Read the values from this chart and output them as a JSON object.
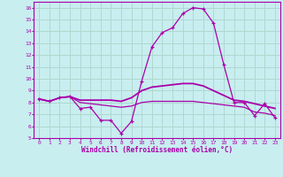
{
  "xlabel": "Windchill (Refroidissement éolien,°C)",
  "background_color": "#c8eef0",
  "grid_color": "#b0d8d0",
  "line_color": "#aa00aa",
  "hours": [
    0,
    1,
    2,
    3,
    4,
    5,
    6,
    7,
    8,
    9,
    10,
    11,
    12,
    13,
    14,
    15,
    16,
    17,
    18,
    19,
    20,
    21,
    22,
    23
  ],
  "series1": [
    8.3,
    8.1,
    8.4,
    8.5,
    7.5,
    7.6,
    6.5,
    6.5,
    5.4,
    6.4,
    9.8,
    12.7,
    13.9,
    14.3,
    15.5,
    16.0,
    15.9,
    14.7,
    11.2,
    8.0,
    8.0,
    6.9,
    7.9,
    6.7
  ],
  "series2": [
    8.3,
    8.1,
    8.4,
    8.5,
    8.2,
    8.2,
    8.2,
    8.2,
    8.1,
    8.4,
    9.0,
    9.3,
    9.4,
    9.5,
    9.6,
    9.6,
    9.4,
    9.0,
    8.6,
    8.2,
    8.1,
    7.9,
    7.7,
    7.5
  ],
  "series3": [
    8.3,
    8.1,
    8.4,
    8.5,
    8.0,
    7.9,
    7.8,
    7.7,
    7.6,
    7.7,
    8.0,
    8.1,
    8.1,
    8.1,
    8.1,
    8.1,
    8.0,
    7.9,
    7.8,
    7.7,
    7.6,
    7.2,
    7.1,
    6.9
  ],
  "ylim": [
    5,
    16.5
  ],
  "yticks": [
    5,
    6,
    7,
    8,
    9,
    10,
    11,
    12,
    13,
    14,
    15,
    16
  ],
  "xticks": [
    0,
    1,
    2,
    3,
    4,
    5,
    6,
    7,
    8,
    9,
    10,
    11,
    12,
    13,
    14,
    15,
    16,
    17,
    18,
    19,
    20,
    21,
    22,
    23
  ]
}
